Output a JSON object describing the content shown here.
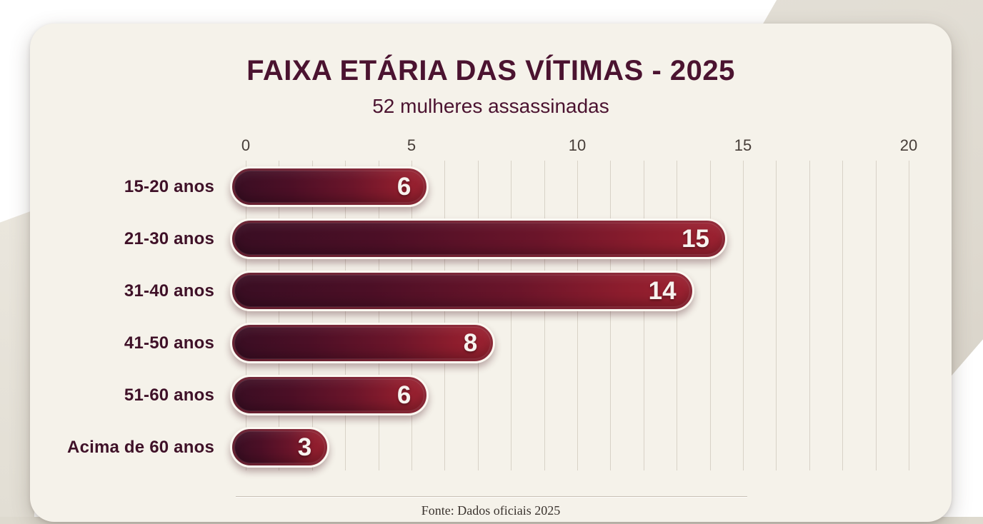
{
  "chart_data": {
    "type": "bar",
    "orientation": "horizontal",
    "title": "FAIXA ETÁRIA DAS VÍTIMAS - 2025",
    "subtitle": "52 mulheres assassinadas",
    "categories": [
      "15-20 anos",
      "21-30 anos",
      "31-40 anos",
      "41-50 anos",
      "51-60 anos",
      "Acima de 60 anos"
    ],
    "values": [
      6,
      15,
      14,
      8,
      6,
      3
    ],
    "xlim": [
      0,
      20
    ],
    "x_ticks": [
      "0",
      "5",
      "10",
      "15",
      "20"
    ],
    "grid": "vertical gridlines every 1 unit, on",
    "legend": "none",
    "source": "Fonte: Dados oficiais 2025",
    "colors": {
      "bar_gradient_start": "#390e23",
      "bar_gradient_end": "#9c2231",
      "bar_border": "#fbf8f1",
      "title_text": "#4b1330",
      "category_text": "#3f1128",
      "tick_text": "#463d38",
      "value_text": "#f7f2ee",
      "card_background": "#f5f2ea",
      "page_background": "#ffffff",
      "torn_paper": "#ded9cf",
      "gridline": "#d8d2c7"
    }
  }
}
